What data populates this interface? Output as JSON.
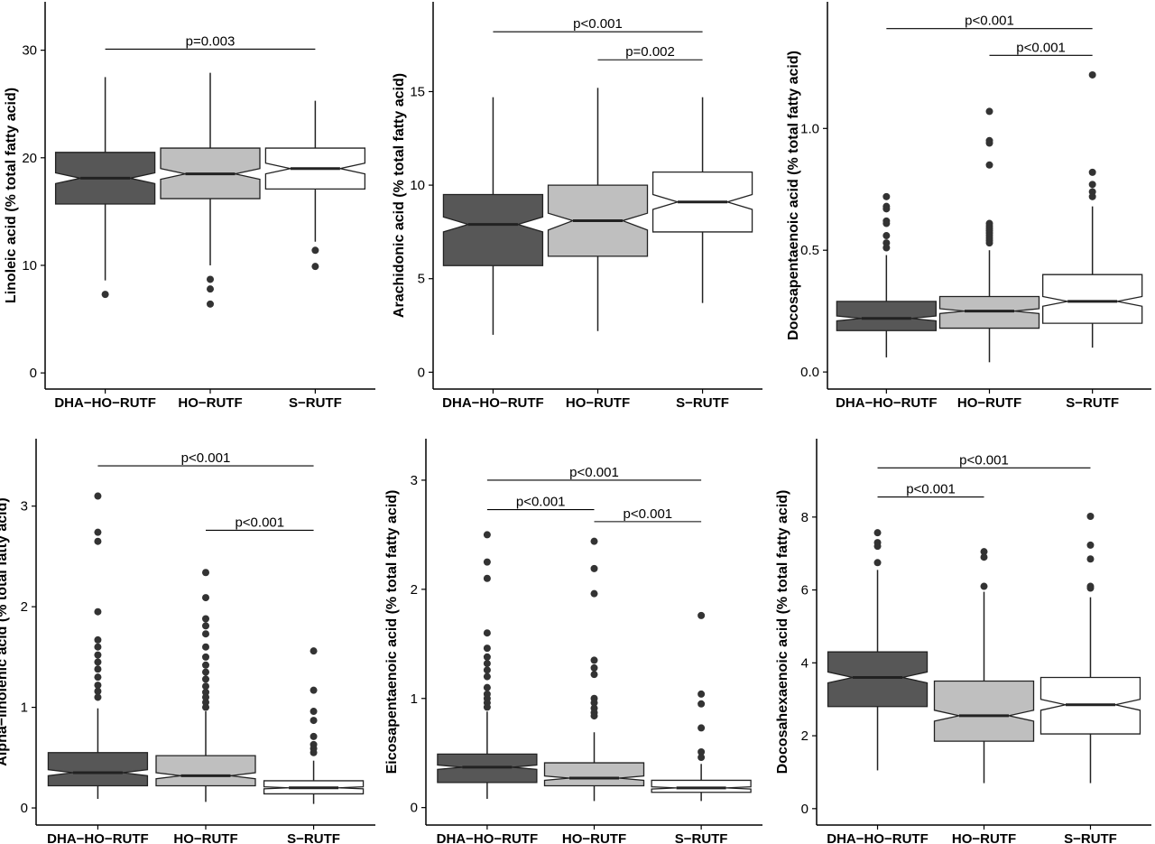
{
  "colors": {
    "DHA-HO-RUTF": "#575757",
    "HO-RUTF": "#bfbfbf",
    "S-RUTF": "#ffffff",
    "line": "#222222",
    "outlier": "#333333"
  },
  "chart_data": [
    {
      "type": "box",
      "ylabel": "Linoleic acid (% total fatty acid)",
      "categories": [
        "DHA−HO−RUTF",
        "HO−RUTF",
        "S−RUTF"
      ],
      "ylim": [
        -1.5,
        34.5
      ],
      "yticks": [
        0,
        10,
        20,
        30
      ],
      "boxes": [
        {
          "q1": 15.7,
          "median": 18.1,
          "q3": 20.5,
          "whisker_low": 8.6,
          "whisker_high": 27.5,
          "notch_low": 17.6,
          "notch_high": 18.6,
          "outliers": [
            7.3
          ]
        },
        {
          "q1": 16.2,
          "median": 18.5,
          "q3": 20.9,
          "whisker_low": 10.0,
          "whisker_high": 27.9,
          "notch_low": 18.0,
          "notch_high": 19.0,
          "outliers": [
            8.7,
            7.8,
            6.4
          ]
        },
        {
          "q1": 17.1,
          "median": 19.0,
          "q3": 20.9,
          "whisker_low": 12.2,
          "whisker_high": 25.3,
          "notch_low": 18.5,
          "notch_high": 19.5,
          "outliers": [
            11.4,
            9.9
          ]
        }
      ],
      "comparisons": [
        {
          "from": 0,
          "to": 2,
          "y": 30.1,
          "label": "p=0.003"
        }
      ]
    },
    {
      "type": "box",
      "ylabel": "Arachidonic acid (% total fatty acid)",
      "categories": [
        "DHA−HO−RUTF",
        "HO−RUTF",
        "S−RUTF"
      ],
      "ylim": [
        -0.9,
        19.8
      ],
      "yticks": [
        0,
        5,
        10,
        15
      ],
      "boxes": [
        {
          "q1": 5.7,
          "median": 7.9,
          "q3": 9.5,
          "whisker_low": 2.0,
          "whisker_high": 14.7,
          "notch_low": 7.5,
          "notch_high": 8.3,
          "outliers": []
        },
        {
          "q1": 6.2,
          "median": 8.1,
          "q3": 10.0,
          "whisker_low": 2.2,
          "whisker_high": 15.2,
          "notch_low": 7.6,
          "notch_high": 8.5,
          "outliers": []
        },
        {
          "q1": 7.5,
          "median": 9.1,
          "q3": 10.7,
          "whisker_low": 3.7,
          "whisker_high": 14.7,
          "notch_low": 8.7,
          "notch_high": 9.5,
          "outliers": []
        }
      ],
      "comparisons": [
        {
          "from": 0,
          "to": 2,
          "y": 18.2,
          "label": "p<0.001"
        },
        {
          "from": 1,
          "to": 2,
          "y": 16.7,
          "label": "p=0.002"
        }
      ]
    },
    {
      "type": "box",
      "ylabel": "Docosapentaenoic acid (% total fatty acid)",
      "categories": [
        "DHA−HO−RUTF",
        "HO−RUTF",
        "S−RUTF"
      ],
      "ylim": [
        -0.07,
        1.52
      ],
      "yticks": [
        0.0,
        0.5,
        1.0
      ],
      "tick_labels": [
        "0.0",
        "0.5",
        "1.0"
      ],
      "boxes": [
        {
          "q1": 0.17,
          "median": 0.22,
          "q3": 0.29,
          "whisker_low": 0.06,
          "whisker_high": 0.48,
          "notch_low": 0.21,
          "notch_high": 0.23,
          "outliers": [
            0.72,
            0.68,
            0.67,
            0.62,
            0.61,
            0.56,
            0.53,
            0.51
          ]
        },
        {
          "q1": 0.18,
          "median": 0.25,
          "q3": 0.31,
          "whisker_low": 0.04,
          "whisker_high": 0.5,
          "notch_low": 0.24,
          "notch_high": 0.26,
          "outliers": [
            1.07,
            0.95,
            0.94,
            0.85,
            0.61,
            0.6,
            0.59,
            0.58,
            0.57,
            0.56,
            0.55,
            0.54,
            0.53
          ]
        },
        {
          "q1": 0.2,
          "median": 0.29,
          "q3": 0.4,
          "whisker_low": 0.1,
          "whisker_high": 0.68,
          "notch_low": 0.27,
          "notch_high": 0.31,
          "outliers": [
            1.22,
            0.82,
            0.77,
            0.74,
            0.72
          ]
        }
      ],
      "comparisons": [
        {
          "from": 0,
          "to": 2,
          "y": 1.41,
          "label": "p<0.001"
        },
        {
          "from": 1,
          "to": 2,
          "y": 1.3,
          "label": "p<0.001"
        }
      ]
    },
    {
      "type": "box",
      "ylabel": "Alpha−linolenic acid (% total fatty acid)",
      "categories": [
        "DHA−HO−RUTF",
        "HO−RUTF",
        "S−RUTF"
      ],
      "ylim": [
        -0.17,
        3.67
      ],
      "yticks": [
        0,
        1,
        2,
        3
      ],
      "boxes": [
        {
          "q1": 0.22,
          "median": 0.35,
          "q3": 0.55,
          "whisker_low": 0.09,
          "whisker_high": 0.99,
          "notch_low": 0.32,
          "notch_high": 0.38,
          "outliers": [
            3.1,
            2.74,
            2.65,
            1.95,
            1.67,
            1.6,
            1.52,
            1.45,
            1.38,
            1.3,
            1.22,
            1.16,
            1.1
          ]
        },
        {
          "q1": 0.22,
          "median": 0.32,
          "q3": 0.52,
          "whisker_low": 0.06,
          "whisker_high": 0.96,
          "notch_low": 0.29,
          "notch_high": 0.35,
          "outliers": [
            2.34,
            2.09,
            1.88,
            1.81,
            1.73,
            1.6,
            1.5,
            1.42,
            1.35,
            1.28,
            1.21,
            1.15,
            1.1,
            1.05,
            1.0
          ]
        },
        {
          "q1": 0.14,
          "median": 0.2,
          "q3": 0.27,
          "whisker_low": 0.04,
          "whisker_high": 0.47,
          "notch_low": 0.19,
          "notch_high": 0.21,
          "outliers": [
            1.56,
            1.17,
            0.96,
            0.87,
            0.71,
            0.63,
            0.59,
            0.55
          ]
        }
      ],
      "comparisons": [
        {
          "from": 0,
          "to": 2,
          "y": 3.4,
          "label": "p<0.001"
        },
        {
          "from": 1,
          "to": 2,
          "y": 2.76,
          "label": "p<0.001"
        }
      ]
    },
    {
      "type": "box",
      "ylabel": "Eicosapentaenoic acid (% total fatty acid)",
      "categories": [
        "DHA−HO−RUTF",
        "HO−RUTF",
        "S−RUTF"
      ],
      "ylim": [
        -0.16,
        3.38
      ],
      "yticks": [
        0,
        1,
        2,
        3
      ],
      "boxes": [
        {
          "q1": 0.23,
          "median": 0.37,
          "q3": 0.49,
          "whisker_low": 0.08,
          "whisker_high": 0.88,
          "notch_low": 0.35,
          "notch_high": 0.39,
          "outliers": [
            2.5,
            2.25,
            2.1,
            1.6,
            1.46,
            1.38,
            1.32,
            1.26,
            1.2,
            1.1,
            1.04,
            1.0,
            0.96,
            0.92
          ]
        },
        {
          "q1": 0.2,
          "median": 0.27,
          "q3": 0.41,
          "whisker_low": 0.06,
          "whisker_high": 0.69,
          "notch_low": 0.25,
          "notch_high": 0.29,
          "outliers": [
            2.44,
            2.19,
            1.96,
            1.35,
            1.28,
            1.22,
            1.0,
            0.96,
            0.91,
            0.87,
            0.84
          ]
        },
        {
          "q1": 0.14,
          "median": 0.18,
          "q3": 0.25,
          "whisker_low": 0.06,
          "whisker_high": 0.4,
          "notch_low": 0.17,
          "notch_high": 0.19,
          "outliers": [
            1.76,
            1.04,
            0.95,
            0.73,
            0.51,
            0.46
          ]
        }
      ],
      "comparisons": [
        {
          "from": 0,
          "to": 2,
          "y": 3.0,
          "label": "p<0.001"
        },
        {
          "from": 0,
          "to": 1,
          "y": 2.73,
          "label": "p<0.001"
        },
        {
          "from": 1,
          "to": 2,
          "y": 2.62,
          "label": "p<0.001"
        }
      ]
    },
    {
      "type": "box",
      "ylabel": "Docosahexaenoic acid (% total fatty acid)",
      "categories": [
        "DHA−HO−RUTF",
        "HO−RUTF",
        "S−RUTF"
      ],
      "ylim": [
        -0.45,
        10.15
      ],
      "yticks": [
        0,
        2,
        4,
        6,
        8
      ],
      "boxes": [
        {
          "q1": 2.8,
          "median": 3.6,
          "q3": 4.3,
          "whisker_low": 1.05,
          "whisker_high": 6.55,
          "notch_low": 3.45,
          "notch_high": 3.75,
          "outliers": [
            7.57,
            7.3,
            7.2,
            6.75
          ]
        },
        {
          "q1": 1.85,
          "median": 2.55,
          "q3": 3.5,
          "whisker_low": 0.7,
          "whisker_high": 5.95,
          "notch_low": 2.4,
          "notch_high": 2.7,
          "outliers": [
            7.05,
            6.9,
            6.1
          ]
        },
        {
          "q1": 2.05,
          "median": 2.85,
          "q3": 3.6,
          "whisker_low": 0.7,
          "whisker_high": 5.8,
          "notch_low": 2.7,
          "notch_high": 3.0,
          "outliers": [
            8.02,
            7.23,
            6.85,
            6.1,
            6.05
          ]
        }
      ],
      "comparisons": [
        {
          "from": 0,
          "to": 2,
          "y": 9.35,
          "label": "p<0.001"
        },
        {
          "from": 0,
          "to": 1,
          "y": 8.55,
          "label": "p<0.001"
        }
      ]
    }
  ]
}
